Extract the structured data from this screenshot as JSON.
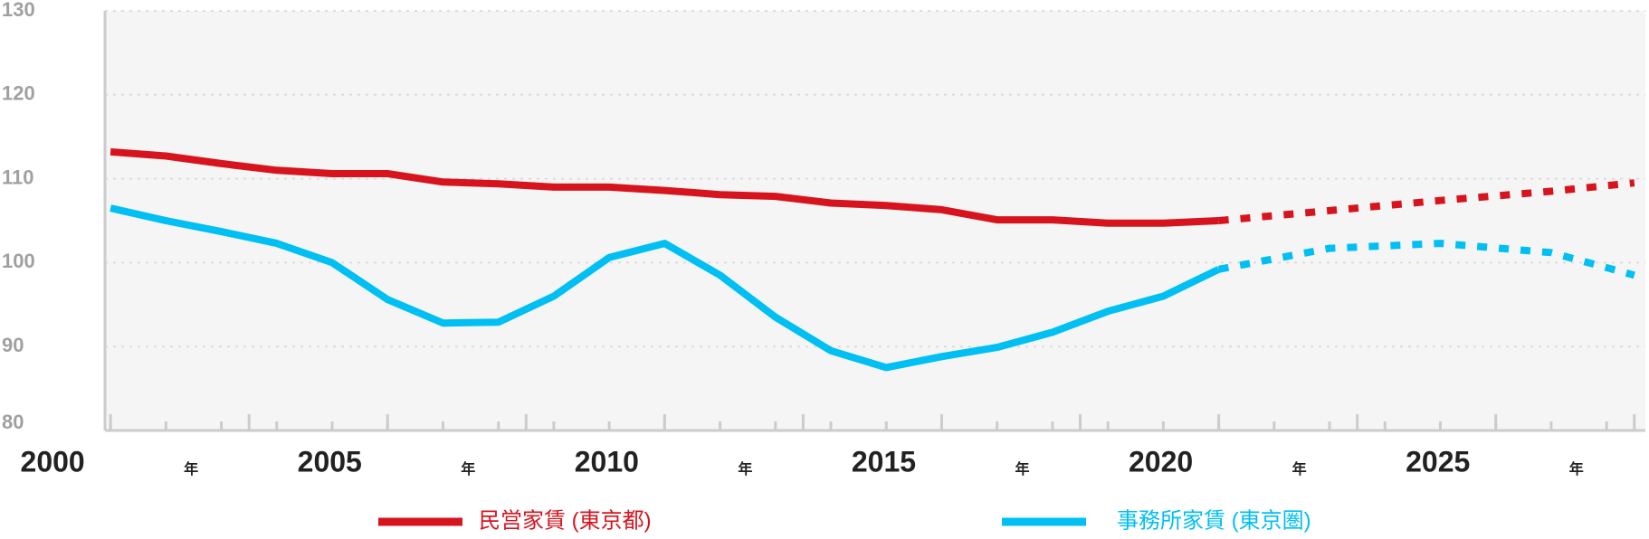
{
  "chart_data": {
    "type": "line",
    "x": [
      2000,
      2001,
      2002,
      2003,
      2004,
      2005,
      2006,
      2007,
      2008,
      2009,
      2010,
      2011,
      2012,
      2013,
      2014,
      2015,
      2016,
      2017,
      2018,
      2019,
      2020
    ],
    "forecast_x": [
      2020,
      2022,
      2024,
      2026,
      2027.5
    ],
    "series": [
      {
        "name": "民営家賃 (東京都)",
        "color": "#d7141e",
        "values": [
          113.2,
          112.7,
          111.8,
          111.0,
          110.6,
          110.6,
          109.6,
          109.4,
          109.0,
          109.0,
          108.6,
          108.1,
          107.9,
          107.1,
          106.8,
          106.3,
          105.1,
          105.1,
          104.7,
          104.7,
          105.0
        ],
        "forecast": [
          105.0,
          106.2,
          107.4,
          108.5,
          109.5
        ]
      },
      {
        "name": "事務所家賃 (東京圏)",
        "color": "#00bff3",
        "values": [
          106.5,
          105.0,
          103.7,
          102.3,
          100.0,
          95.6,
          92.8,
          92.9,
          96.0,
          100.6,
          102.3,
          98.5,
          93.5,
          89.5,
          87.5,
          88.8,
          89.9,
          91.7,
          94.2,
          96.0,
          99.2
        ],
        "forecast": [
          99.2,
          101.7,
          102.3,
          101.2,
          98.5
        ]
      }
    ],
    "xlim": [
      1999.9,
      2027.7
    ],
    "xticks": [
      {
        "value": 2000,
        "label": "2000"
      },
      {
        "value": 2002.5,
        "label": "年"
      },
      {
        "value": 2005,
        "label": "2005"
      },
      {
        "value": 2007.5,
        "label": "年"
      },
      {
        "value": 2010,
        "label": "2010"
      },
      {
        "value": 2012.5,
        "label": "年"
      },
      {
        "value": 2015,
        "label": "2015"
      },
      {
        "value": 2017.5,
        "label": "年"
      },
      {
        "value": 2020,
        "label": "2020"
      },
      {
        "value": 2022.5,
        "label": "年"
      },
      {
        "value": 2025,
        "label": "2025"
      },
      {
        "value": 2027.5,
        "label": "年"
      }
    ],
    "ylim": [
      80,
      130
    ],
    "yticks": [
      80,
      90,
      100,
      110,
      120,
      130
    ],
    "grid": true
  }
}
